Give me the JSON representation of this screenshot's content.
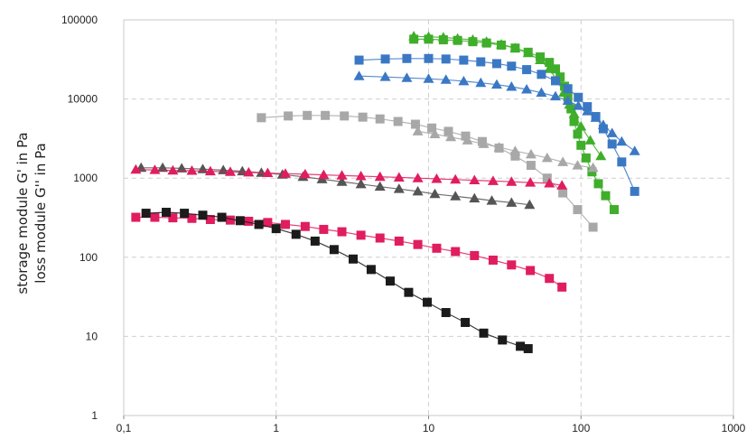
{
  "chart_data": {
    "type": "scatter",
    "title": "",
    "xlabel": "",
    "ylabel_lines": [
      "storage module G' in Pa",
      "loss module G'' in Pa"
    ],
    "x_scale": "log",
    "y_scale": "log",
    "xlim": [
      0.1,
      1000
    ],
    "ylim": [
      1,
      100000
    ],
    "x_tick_labels": [
      "0,1",
      "1",
      "10",
      "100",
      "1000"
    ],
    "y_tick_labels": [
      "1",
      "10",
      "100",
      "1000",
      "10000",
      "100000"
    ],
    "grid": true,
    "legend": "none",
    "series": [
      {
        "color": "#3fae2a",
        "marker": "square",
        "x": [
          8,
          10,
          12.5,
          15.5,
          19.5,
          24,
          30,
          37,
          45,
          54,
          62,
          68,
          73,
          78,
          82,
          86,
          90,
          95,
          100,
          108,
          118,
          130,
          145,
          165
        ],
        "y": [
          57000,
          57000,
          56000,
          55000,
          53000,
          51000,
          48000,
          44000,
          39000,
          34000,
          29000,
          24000,
          19000,
          14500,
          10500,
          7500,
          5200,
          3600,
          2600,
          1800,
          1200,
          850,
          600,
          400
        ]
      },
      {
        "color": "#3fae2a",
        "marker": "triangle",
        "x": [
          8,
          10,
          12.5,
          15.5,
          19.5,
          24,
          30,
          37,
          45,
          54,
          62,
          70,
          77,
          84,
          90,
          100,
          115,
          135
        ],
        "y": [
          62000,
          61000,
          60000,
          58000,
          56000,
          53000,
          49000,
          44000,
          38000,
          31000,
          24000,
          17000,
          12000,
          8500,
          6500,
          4500,
          3000,
          1900
        ]
      },
      {
        "color": "#3b78c4",
        "marker": "square",
        "x": [
          3.5,
          5.2,
          7.2,
          10,
          13,
          17,
          22,
          28,
          35,
          44,
          55,
          68,
          82,
          96,
          110,
          125,
          140,
          160,
          185,
          225
        ],
        "y": [
          31000,
          32000,
          32500,
          32500,
          32000,
          31000,
          29500,
          28000,
          26000,
          23500,
          20500,
          17000,
          13500,
          10500,
          8000,
          6000,
          4200,
          2700,
          1600,
          680
        ]
      },
      {
        "color": "#3b78c4",
        "marker": "triangle",
        "x": [
          3.5,
          5.2,
          7.2,
          10,
          13,
          17,
          22,
          28,
          35,
          44,
          55,
          68,
          82,
          96,
          110,
          125,
          140,
          160,
          185,
          225
        ],
        "y": [
          19500,
          19000,
          18500,
          18000,
          17500,
          16800,
          16000,
          15200,
          14300,
          13200,
          12000,
          10800,
          9500,
          8200,
          7000,
          5800,
          4700,
          3700,
          2900,
          2200
        ]
      },
      {
        "color": "#a8a8a8",
        "marker": "square",
        "x": [
          0.8,
          1.2,
          1.6,
          2.1,
          2.8,
          3.7,
          4.8,
          6.3,
          8.2,
          10.5,
          13.5,
          17.5,
          22.5,
          29,
          37,
          47,
          60,
          76,
          95,
          120
        ],
        "y": [
          5800,
          6100,
          6200,
          6200,
          6100,
          5900,
          5600,
          5200,
          4800,
          4300,
          3900,
          3400,
          2900,
          2400,
          1900,
          1450,
          1000,
          650,
          400,
          240
        ]
      },
      {
        "color": "#a8a8a8",
        "marker": "triangle",
        "x": [
          8.5,
          11,
          14,
          18,
          23,
          29,
          37,
          47,
          60,
          76,
          95,
          120
        ],
        "y": [
          3900,
          3600,
          3300,
          3000,
          2700,
          2450,
          2200,
          2000,
          1800,
          1600,
          1450,
          1350
        ]
      },
      {
        "color": "#555555",
        "marker": "triangle",
        "x": [
          0.13,
          0.18,
          0.24,
          0.33,
          0.45,
          0.6,
          0.8,
          1.1,
          1.5,
          2,
          2.7,
          3.6,
          4.8,
          6.4,
          8.5,
          11,
          15,
          20,
          26,
          35,
          46
        ],
        "y": [
          1350,
          1350,
          1330,
          1300,
          1260,
          1220,
          1170,
          1110,
          1040,
          970,
          900,
          840,
          780,
          730,
          680,
          630,
          590,
          555,
          520,
          490,
          460
        ]
      },
      {
        "color": "#e01d5e",
        "marker": "triangle",
        "x": [
          0.12,
          0.16,
          0.21,
          0.28,
          0.37,
          0.5,
          0.66,
          0.88,
          1.15,
          1.55,
          2.05,
          2.7,
          3.6,
          4.8,
          6.4,
          8.5,
          11.3,
          15,
          20,
          26.5,
          35,
          46.5,
          62,
          75
        ],
        "y": [
          1280,
          1270,
          1250,
          1240,
          1220,
          1200,
          1180,
          1160,
          1140,
          1120,
          1100,
          1080,
          1060,
          1040,
          1020,
          1000,
          980,
          960,
          940,
          920,
          900,
          880,
          860,
          810
        ]
      },
      {
        "color": "#e01d5e",
        "marker": "square",
        "x": [
          0.12,
          0.16,
          0.21,
          0.28,
          0.37,
          0.5,
          0.66,
          0.88,
          1.15,
          1.55,
          2.05,
          2.7,
          3.6,
          4.8,
          6.4,
          8.5,
          11.3,
          15,
          20,
          26.5,
          35,
          46.5,
          62,
          75
        ],
        "y": [
          320,
          320,
          315,
          310,
          300,
          295,
          285,
          275,
          260,
          245,
          225,
          210,
          190,
          175,
          160,
          145,
          130,
          118,
          105,
          92,
          80,
          68,
          54,
          42
        ]
      },
      {
        "color": "#1b1b1b",
        "marker": "square",
        "x": [
          0.14,
          0.19,
          0.25,
          0.33,
          0.44,
          0.58,
          0.77,
          1.0,
          1.35,
          1.8,
          2.4,
          3.2,
          4.2,
          5.6,
          7.4,
          9.8,
          13,
          17.4,
          23,
          30.5,
          40,
          45
        ],
        "y": [
          360,
          370,
          360,
          340,
          320,
          290,
          260,
          230,
          195,
          160,
          125,
          95,
          70,
          50,
          36,
          27,
          20,
          15,
          11,
          9,
          7.5,
          7
        ]
      }
    ]
  }
}
